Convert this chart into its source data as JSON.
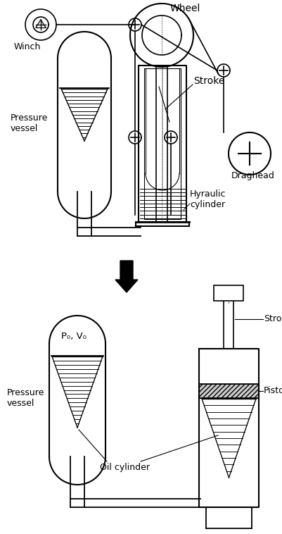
{
  "fig_width": 4.02,
  "fig_height": 7.58,
  "dpi": 100,
  "bg_color": "#ffffff",
  "line_color": "#000000",
  "lw": 1.2,
  "labels": {
    "winch": "Winch",
    "wheel": "Wheel",
    "stroke_top": "Stroke",
    "draghead": "Draghead",
    "pressure_vessel_top": "Pressure\nvessel",
    "hyraulic_cylinder": "Hyraulic\ncylinder",
    "pressure_vessel_bot": "Pressure\nvessel",
    "p0v0": "P₀, V₀",
    "stroke_bot": "Stroke",
    "piston": "Piston",
    "oil_cylinder": "Oil cylinder"
  }
}
